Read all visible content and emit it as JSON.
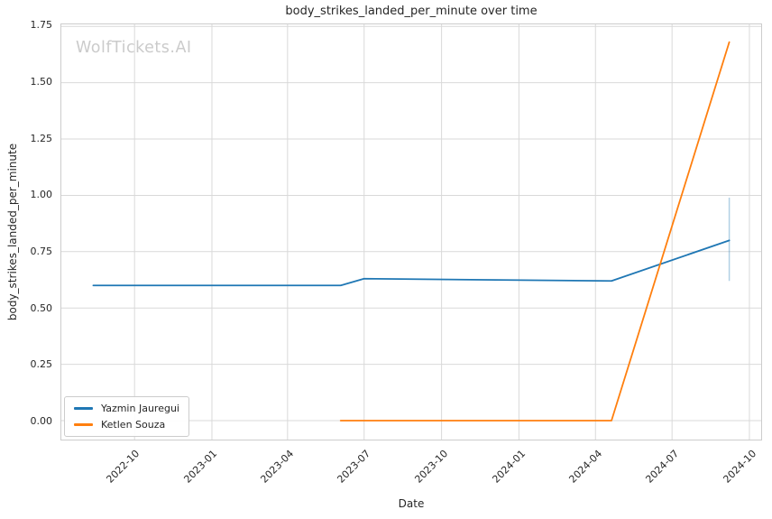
{
  "watermark": "WolfTickets.AI",
  "colors": {
    "background": "#ffffff",
    "grid": "#d9d9d9",
    "spine": "#cccccc",
    "text": "#262626",
    "watermark": "#cbcbcb",
    "series_blue": "#1f77b4",
    "series_orange": "#ff7f0e"
  },
  "chart_data": {
    "type": "line",
    "title": "body_strikes_landed_per_minute over time",
    "xlabel": "Date",
    "ylabel": "body_strikes_landed_per_minute",
    "grid": true,
    "x_axis": {
      "min": "2022-07-06",
      "max": "2024-10-15",
      "tick_rotation": 45,
      "ticks": [
        {
          "label": "2022-10",
          "date": "2022-10-01"
        },
        {
          "label": "2023-01",
          "date": "2023-01-01"
        },
        {
          "label": "2023-04",
          "date": "2023-04-01"
        },
        {
          "label": "2023-07",
          "date": "2023-07-01"
        },
        {
          "label": "2023-10",
          "date": "2023-10-01"
        },
        {
          "label": "2024-01",
          "date": "2024-01-01"
        },
        {
          "label": "2024-04",
          "date": "2024-04-01"
        },
        {
          "label": "2024-07",
          "date": "2024-07-01"
        },
        {
          "label": "2024-10",
          "date": "2024-10-01"
        }
      ]
    },
    "y_axis": {
      "min": -0.084,
      "max": 1.759,
      "ticks": [
        {
          "label": "0.00",
          "value": 0.0
        },
        {
          "label": "0.25",
          "value": 0.25
        },
        {
          "label": "0.50",
          "value": 0.5
        },
        {
          "label": "0.75",
          "value": 0.75
        },
        {
          "label": "1.00",
          "value": 1.0
        },
        {
          "label": "1.25",
          "value": 1.25
        },
        {
          "label": "1.50",
          "value": 1.5
        },
        {
          "label": "1.75",
          "value": 1.75
        }
      ]
    },
    "legend": {
      "position": "lower-left",
      "entries": [
        "Yazmin Jauregui",
        "Ketlen Souza"
      ]
    },
    "series": [
      {
        "name": "Yazmin Jauregui",
        "color": "#1f77b4",
        "points": [
          [
            "2022-08-13",
            0.6
          ],
          [
            "2023-06-03",
            0.6
          ],
          [
            "2023-07-01",
            0.63
          ],
          [
            "2024-04-20",
            0.62
          ],
          [
            "2024-09-07",
            0.8
          ]
        ]
      },
      {
        "name": "Ketlen Souza",
        "color": "#ff7f0e",
        "points": [
          [
            "2023-06-03",
            0.0
          ],
          [
            "2024-04-20",
            0.0
          ],
          [
            "2024-09-07",
            1.68
          ]
        ]
      }
    ],
    "error_bars": [
      {
        "series": "Yazmin Jauregui",
        "x": "2024-09-07",
        "y_low": 0.62,
        "y_high": 0.99,
        "color": "#1f77b4",
        "opacity": 0.35
      }
    ]
  }
}
